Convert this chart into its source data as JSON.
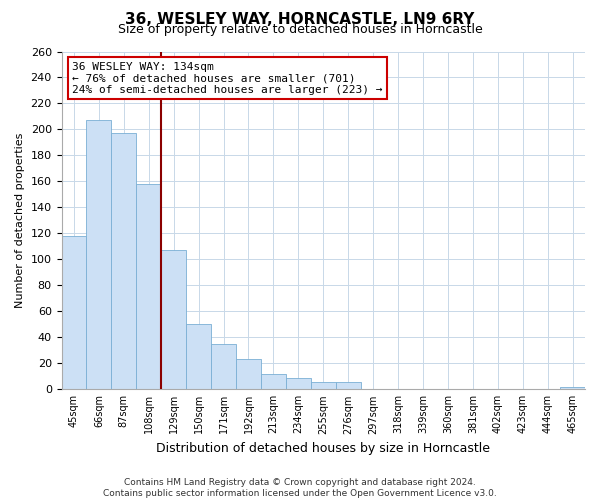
{
  "title": "36, WESLEY WAY, HORNCASTLE, LN9 6RY",
  "subtitle": "Size of property relative to detached houses in Horncastle",
  "xlabel": "Distribution of detached houses by size in Horncastle",
  "ylabel": "Number of detached properties",
  "categories": [
    "45sqm",
    "66sqm",
    "87sqm",
    "108sqm",
    "129sqm",
    "150sqm",
    "171sqm",
    "192sqm",
    "213sqm",
    "234sqm",
    "255sqm",
    "276sqm",
    "297sqm",
    "318sqm",
    "339sqm",
    "360sqm",
    "381sqm",
    "402sqm",
    "423sqm",
    "444sqm",
    "465sqm"
  ],
  "values": [
    118,
    207,
    197,
    158,
    107,
    50,
    35,
    23,
    12,
    9,
    6,
    6,
    0,
    0,
    0,
    0,
    0,
    0,
    0,
    0,
    2
  ],
  "bar_color": "#cce0f5",
  "bar_edge_color": "#7aafd4",
  "property_line_x": 4.0,
  "property_line_color": "#8b0000",
  "annotation_title": "36 WESLEY WAY: 134sqm",
  "annotation_line1": "← 76% of detached houses are smaller (701)",
  "annotation_line2": "24% of semi-detached houses are larger (223) →",
  "annotation_box_color": "#ffffff",
  "annotation_box_edge_color": "#cc0000",
  "ylim": [
    0,
    260
  ],
  "yticks": [
    0,
    20,
    40,
    60,
    80,
    100,
    120,
    140,
    160,
    180,
    200,
    220,
    240,
    260
  ],
  "footer_line1": "Contains HM Land Registry data © Crown copyright and database right 2024.",
  "footer_line2": "Contains public sector information licensed under the Open Government Licence v3.0.",
  "background_color": "#ffffff",
  "grid_color": "#c8d8e8",
  "title_fontsize": 11,
  "subtitle_fontsize": 9,
  "xlabel_fontsize": 9,
  "ylabel_fontsize": 8,
  "tick_fontsize": 7,
  "annotation_fontsize": 8,
  "footer_fontsize": 6.5
}
